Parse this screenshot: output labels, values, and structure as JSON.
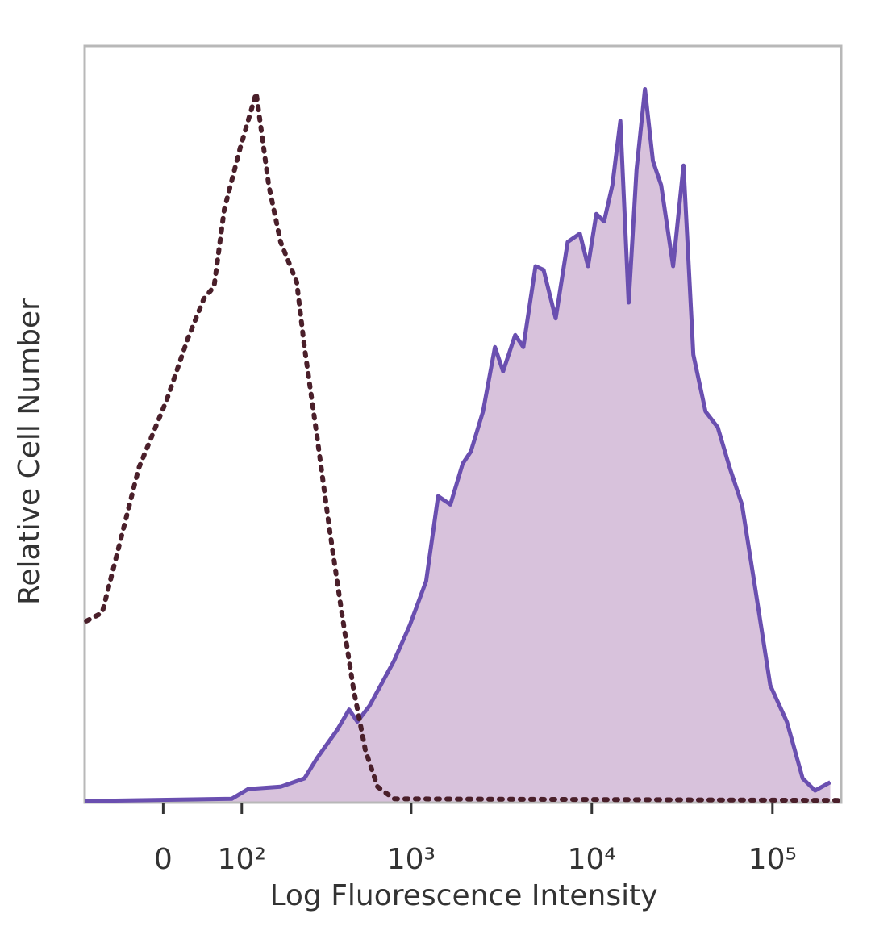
{
  "chart_data": {
    "type": "histogram-overlay",
    "x_label": "Log Fluorescence Intensity",
    "y_label": "Relative Cell Number",
    "xscale": "biexponential",
    "xlim": [
      -100,
      240000
    ],
    "xticks": [
      0,
      {
        "value": 100,
        "label": "10²"
      },
      {
        "value": 1000,
        "label": "10³"
      },
      {
        "value": 10000,
        "label": "10⁴"
      },
      {
        "value": 100000,
        "label": "10⁵"
      }
    ],
    "ylim": [
      0,
      100
    ],
    "series": [
      {
        "color": "#6a4fb0",
        "fill_color": "#d8c2dc",
        "line_style": "solid",
        "x": [
          -100,
          84,
          111,
          180,
          250,
          296,
          385,
          450,
          501,
          586,
          801,
          984,
          1210,
          1410,
          1650,
          1930,
          2140,
          2500,
          2910,
          3230,
          3770,
          4180,
          4880,
          5410,
          6310,
          7360,
          8590,
          9530,
          10600,
          11700,
          13000,
          14400,
          16000,
          17700,
          19700,
          21800,
          24200,
          28200,
          32200,
          36500,
          42600,
          49800,
          58100,
          67800,
          79100,
          97300,
          120000,
          147000,
          172000,
          209000
        ],
        "values": [
          0.2,
          0.5,
          1.8,
          2.1,
          3.2,
          5.9,
          9.6,
          12.3,
          10.7,
          12.8,
          18.7,
          23.5,
          29.3,
          40.5,
          39.4,
          44.8,
          46.4,
          51.7,
          60.2,
          57.0,
          61.8,
          60.2,
          70.9,
          70.4,
          64.0,
          74.1,
          75.2,
          70.9,
          77.8,
          76.8,
          81.6,
          90.1,
          66.1,
          83.7,
          94.3,
          84.8,
          81.6,
          70.9,
          84.2,
          59.2,
          51.7,
          49.6,
          44.2,
          39.4,
          29.3,
          15.5,
          10.7,
          3.2,
          1.6,
          2.7
        ]
      },
      {
        "color": "#4a1f2a",
        "line_style": "dotted",
        "x": [
          -97,
          -73,
          -27,
          4,
          27,
          46,
          59,
          73,
          97,
          126,
          152,
          180,
          225,
          250,
          296,
          347,
          405,
          476,
          556,
          650,
          801,
          231600
        ],
        "values": [
          24.0,
          25.1,
          44.2,
          53.3,
          61.3,
          66.6,
          68.2,
          78.4,
          86.4,
          93.8,
          81.6,
          74.1,
          68.8,
          60.2,
          48.3,
          36.5,
          25.8,
          15.1,
          6.9,
          2.1,
          0.5,
          0.3
        ]
      }
    ]
  }
}
